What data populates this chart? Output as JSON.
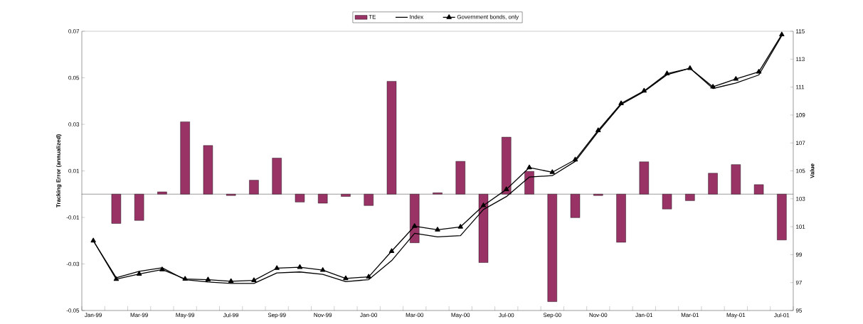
{
  "chart_data": {
    "type": "bar",
    "ylabel": "Tracking Error (annualized)",
    "y2label": "Value",
    "categories": [
      "Jan-99",
      null,
      "Mar-99",
      null,
      "May-99",
      null,
      "Jul-99",
      null,
      "Sep-99",
      null,
      "Nov-99",
      null,
      "Jan-00",
      null,
      "Mar-00",
      null,
      "May-00",
      null,
      "Jul-00",
      null,
      "Sep-00",
      null,
      "Nov-00",
      null,
      "Jan-01",
      null,
      "Mar-01",
      null,
      "May-01",
      null,
      "Jul-01"
    ],
    "series": [
      {
        "name": "TE",
        "color": "#993366",
        "values": [
          null,
          -0.0126,
          -0.0113,
          0.001,
          0.0311,
          0.0209,
          -0.0006,
          0.006,
          0.0155,
          -0.0034,
          -0.0039,
          -0.001,
          -0.0049,
          0.0485,
          -0.0209,
          0.0006,
          0.0141,
          -0.0294,
          0.0245,
          0.0098,
          -0.0462,
          -0.0101,
          -0.0006,
          -0.0207,
          0.0139,
          -0.0064,
          -0.0028,
          0.009,
          0.0127,
          0.0041,
          -0.0197
        ]
      },
      {
        "name": "Index",
        "type": "line",
        "axis": "y2",
        "color": "#000000",
        "marker": "none",
        "line_style": "solid",
        "values": [
          100,
          97.35,
          97.81,
          98.06,
          97.21,
          97.04,
          96.94,
          96.94,
          97.69,
          97.76,
          97.59,
          97.07,
          97.21,
          98.57,
          100.53,
          100.27,
          100.36,
          102.23,
          103.16,
          104.56,
          104.66,
          105.68,
          107.8,
          109.76,
          110.68,
          111.89,
          112.35,
          110.9,
          111.29,
          111.87,
          114.69
        ]
      },
      {
        "name": "Government bonds, only",
        "type": "line",
        "axis": "y2",
        "color": "#000000",
        "marker": "triangle",
        "line_style": "solid",
        "values": [
          100,
          97.24,
          97.62,
          97.93,
          97.26,
          97.21,
          97.09,
          97.16,
          98.03,
          98.1,
          97.89,
          97.3,
          97.41,
          99.25,
          101.04,
          100.78,
          100.99,
          102.52,
          103.67,
          105.24,
          104.9,
          105.8,
          107.9,
          109.83,
          110.73,
          111.97,
          112.35,
          111.02,
          111.58,
          112.09,
          114.76
        ]
      }
    ],
    "ylim": [
      -0.05,
      0.07
    ],
    "yticks": [
      -0.05,
      -0.03,
      -0.01,
      0.01,
      0.03,
      0.05,
      0.07
    ],
    "y2lim": [
      95,
      115
    ],
    "y2ticks": [
      95,
      97,
      99,
      101,
      103,
      105,
      107,
      109,
      111,
      113,
      115
    ],
    "legend": "top"
  }
}
